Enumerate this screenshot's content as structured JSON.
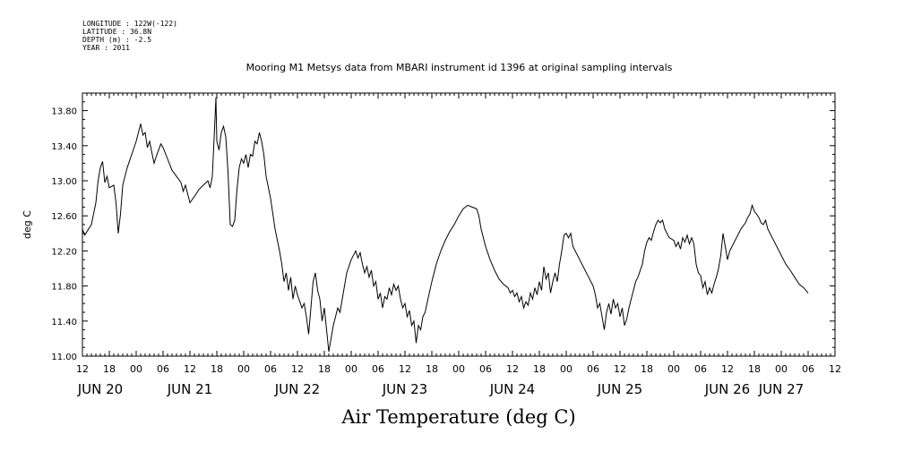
{
  "metadata": {
    "longitude": "LONGITUDE : 122W(-122)",
    "latitude": "LATITUDE : 36.8N",
    "depth": "DEPTH (m) : -2.5",
    "year": "YEAR : 2011"
  },
  "chart_data": {
    "type": "line",
    "title": "Mooring M1 Metsys data from MBARI instrument id 1396 at original sampling intervals",
    "xlabel": "Air Temperature (deg C)",
    "ylabel": "deg C",
    "ylim": [
      11.0,
      14.0
    ],
    "yticks": [
      "11.00",
      "11.40",
      "11.80",
      "12.20",
      "12.60",
      "13.00",
      "13.40",
      "13.80"
    ],
    "xlim_hours_label": "JUN 20 12:00 to JUN 27 12:00",
    "xticks": [
      "12",
      "18",
      "00",
      "06",
      "12",
      "18",
      "00",
      "06",
      "12",
      "18",
      "00",
      "06",
      "12",
      "18",
      "00",
      "06",
      "12",
      "18",
      "00",
      "06",
      "12",
      "18",
      "00",
      "06",
      "12",
      "18",
      "00",
      "06",
      "12"
    ],
    "day_labels": [
      "JUN 20",
      "JUN 21",
      "JUN 22",
      "JUN 23",
      "JUN 24",
      "JUN 25",
      "JUN 26",
      "JUN 27"
    ],
    "grid": false,
    "series": [
      {
        "values_by_hour": [
          [
            0,
            12.45
          ],
          [
            0.5,
            12.38
          ],
          [
            1,
            12.42
          ],
          [
            2,
            12.5
          ],
          [
            3,
            12.75
          ],
          [
            3.5,
            13.0
          ],
          [
            4,
            13.15
          ],
          [
            4.5,
            13.22
          ],
          [
            5,
            12.98
          ],
          [
            5.5,
            13.05
          ],
          [
            6,
            12.92
          ],
          [
            7,
            12.95
          ],
          [
            7.5,
            12.75
          ],
          [
            8,
            12.4
          ],
          [
            8.5,
            12.62
          ],
          [
            9,
            12.95
          ],
          [
            10,
            13.15
          ],
          [
            11,
            13.3
          ],
          [
            12,
            13.45
          ],
          [
            12.5,
            13.55
          ],
          [
            13,
            13.65
          ],
          [
            13.5,
            13.52
          ],
          [
            14,
            13.55
          ],
          [
            14.5,
            13.38
          ],
          [
            15,
            13.45
          ],
          [
            15.5,
            13.32
          ],
          [
            16,
            13.2
          ],
          [
            16.5,
            13.28
          ],
          [
            17,
            13.35
          ],
          [
            17.5,
            13.42
          ],
          [
            18,
            13.38
          ],
          [
            19,
            13.25
          ],
          [
            20,
            13.12
          ],
          [
            21,
            13.05
          ],
          [
            22,
            12.98
          ],
          [
            22.5,
            12.88
          ],
          [
            23,
            12.95
          ],
          [
            23.5,
            12.85
          ],
          [
            24,
            12.75
          ],
          [
            25,
            12.82
          ],
          [
            26,
            12.9
          ],
          [
            27,
            12.95
          ],
          [
            28,
            13.0
          ],
          [
            28.5,
            12.92
          ],
          [
            29,
            13.05
          ],
          [
            29.5,
            13.6
          ],
          [
            29.8,
            13.95
          ],
          [
            30,
            13.45
          ],
          [
            30.5,
            13.35
          ],
          [
            31,
            13.55
          ],
          [
            31.5,
            13.62
          ],
          [
            32,
            13.5
          ],
          [
            32.5,
            13.1
          ],
          [
            33,
            12.5
          ],
          [
            33.5,
            12.48
          ],
          [
            34,
            12.55
          ],
          [
            34.5,
            12.9
          ],
          [
            35,
            13.15
          ],
          [
            35.5,
            13.25
          ],
          [
            36,
            13.2
          ],
          [
            36.5,
            13.3
          ],
          [
            37,
            13.15
          ],
          [
            37.5,
            13.3
          ],
          [
            38,
            13.28
          ],
          [
            38.5,
            13.45
          ],
          [
            39,
            13.42
          ],
          [
            39.5,
            13.55
          ],
          [
            40,
            13.45
          ],
          [
            40.5,
            13.3
          ],
          [
            41,
            13.05
          ],
          [
            42,
            12.8
          ],
          [
            43,
            12.45
          ],
          [
            44,
            12.2
          ],
          [
            44.5,
            12.05
          ],
          [
            45,
            11.85
          ],
          [
            45.5,
            11.95
          ],
          [
            46,
            11.75
          ],
          [
            46.5,
            11.9
          ],
          [
            47,
            11.65
          ],
          [
            47.5,
            11.8
          ],
          [
            48,
            11.7
          ],
          [
            49,
            11.55
          ],
          [
            49.5,
            11.6
          ],
          [
            50,
            11.45
          ],
          [
            50.5,
            11.25
          ],
          [
            51,
            11.55
          ],
          [
            51.5,
            11.85
          ],
          [
            52,
            11.95
          ],
          [
            52.5,
            11.75
          ],
          [
            53,
            11.65
          ],
          [
            53.5,
            11.4
          ],
          [
            54,
            11.55
          ],
          [
            54.5,
            11.3
          ],
          [
            55,
            11.05
          ],
          [
            55.5,
            11.2
          ],
          [
            56,
            11.35
          ],
          [
            56.5,
            11.45
          ],
          [
            57,
            11.55
          ],
          [
            57.5,
            11.5
          ],
          [
            58,
            11.65
          ],
          [
            59,
            11.95
          ],
          [
            60,
            12.1
          ],
          [
            60.5,
            12.15
          ],
          [
            61,
            12.2
          ],
          [
            61.5,
            12.12
          ],
          [
            62,
            12.18
          ],
          [
            62.5,
            12.05
          ],
          [
            63,
            11.95
          ],
          [
            63.5,
            12.02
          ],
          [
            64,
            11.9
          ],
          [
            64.5,
            11.98
          ],
          [
            65,
            11.8
          ],
          [
            65.5,
            11.85
          ],
          [
            66,
            11.65
          ],
          [
            66.5,
            11.72
          ],
          [
            67,
            11.55
          ],
          [
            67.5,
            11.68
          ],
          [
            68,
            11.65
          ],
          [
            68.5,
            11.78
          ],
          [
            69,
            11.7
          ],
          [
            69.5,
            11.82
          ],
          [
            70,
            11.75
          ],
          [
            70.5,
            11.8
          ],
          [
            71,
            11.65
          ],
          [
            71.5,
            11.55
          ],
          [
            72,
            11.6
          ],
          [
            72.5,
            11.45
          ],
          [
            73,
            11.52
          ],
          [
            73.5,
            11.35
          ],
          [
            74,
            11.4
          ],
          [
            74.5,
            11.15
          ],
          [
            75,
            11.35
          ],
          [
            75.5,
            11.3
          ],
          [
            76,
            11.45
          ],
          [
            76.5,
            11.5
          ],
          [
            77,
            11.62
          ],
          [
            78,
            11.85
          ],
          [
            79,
            12.05
          ],
          [
            80,
            12.2
          ],
          [
            81,
            12.32
          ],
          [
            82,
            12.42
          ],
          [
            83,
            12.5
          ],
          [
            84,
            12.6
          ],
          [
            85,
            12.68
          ],
          [
            86,
            12.72
          ],
          [
            87,
            12.7
          ],
          [
            88,
            12.68
          ],
          [
            88.5,
            12.6
          ],
          [
            89,
            12.45
          ],
          [
            90,
            12.25
          ],
          [
            91,
            12.1
          ],
          [
            92,
            11.98
          ],
          [
            93,
            11.88
          ],
          [
            94,
            11.82
          ],
          [
            95,
            11.78
          ],
          [
            95.5,
            11.72
          ],
          [
            96,
            11.75
          ],
          [
            96.5,
            11.68
          ],
          [
            97,
            11.72
          ],
          [
            97.5,
            11.62
          ],
          [
            98,
            11.68
          ],
          [
            98.5,
            11.55
          ],
          [
            99,
            11.62
          ],
          [
            99.5,
            11.58
          ],
          [
            100,
            11.72
          ],
          [
            100.5,
            11.65
          ],
          [
            101,
            11.78
          ],
          [
            101.5,
            11.7
          ],
          [
            102,
            11.85
          ],
          [
            102.5,
            11.75
          ],
          [
            103,
            12.02
          ],
          [
            103.5,
            11.88
          ],
          [
            104,
            11.95
          ],
          [
            104.5,
            11.72
          ],
          [
            105,
            11.85
          ],
          [
            105.5,
            11.95
          ],
          [
            106,
            11.85
          ],
          [
            106.5,
            12.05
          ],
          [
            107,
            12.2
          ],
          [
            107.5,
            12.38
          ],
          [
            108,
            12.4
          ],
          [
            108.5,
            12.35
          ],
          [
            109,
            12.4
          ],
          [
            109.5,
            12.25
          ],
          [
            110,
            12.2
          ],
          [
            111,
            12.1
          ],
          [
            112,
            12.0
          ],
          [
            113,
            11.9
          ],
          [
            114,
            11.8
          ],
          [
            114.5,
            11.7
          ],
          [
            115,
            11.55
          ],
          [
            115.5,
            11.6
          ],
          [
            116,
            11.45
          ],
          [
            116.5,
            11.3
          ],
          [
            117,
            11.5
          ],
          [
            117.5,
            11.6
          ],
          [
            118,
            11.48
          ],
          [
            118.5,
            11.65
          ],
          [
            119,
            11.55
          ],
          [
            119.5,
            11.6
          ],
          [
            120,
            11.45
          ],
          [
            120.5,
            11.55
          ],
          [
            121,
            11.35
          ],
          [
            121.5,
            11.42
          ],
          [
            122,
            11.55
          ],
          [
            122.5,
            11.65
          ],
          [
            123,
            11.75
          ],
          [
            123.5,
            11.85
          ],
          [
            124,
            11.9
          ],
          [
            125,
            12.05
          ],
          [
            125.5,
            12.2
          ],
          [
            126,
            12.3
          ],
          [
            126.5,
            12.35
          ],
          [
            127,
            12.32
          ],
          [
            127.5,
            12.42
          ],
          [
            128,
            12.5
          ],
          [
            128.5,
            12.55
          ],
          [
            129,
            12.52
          ],
          [
            129.5,
            12.55
          ],
          [
            130,
            12.45
          ],
          [
            130.5,
            12.4
          ],
          [
            131,
            12.35
          ],
          [
            132,
            12.32
          ],
          [
            132.5,
            12.25
          ],
          [
            133,
            12.3
          ],
          [
            133.5,
            12.22
          ],
          [
            134,
            12.35
          ],
          [
            134.5,
            12.3
          ],
          [
            135,
            12.38
          ],
          [
            135.5,
            12.28
          ],
          [
            136,
            12.35
          ],
          [
            136.5,
            12.28
          ],
          [
            137,
            12.05
          ],
          [
            137.5,
            11.95
          ],
          [
            138,
            11.92
          ],
          [
            138.5,
            11.78
          ],
          [
            139,
            11.85
          ],
          [
            139.5,
            11.7
          ],
          [
            140,
            11.78
          ],
          [
            140.5,
            11.72
          ],
          [
            141,
            11.82
          ],
          [
            141.5,
            11.9
          ],
          [
            142,
            12.0
          ],
          [
            142.5,
            12.15
          ],
          [
            143,
            12.4
          ],
          [
            143.5,
            12.25
          ],
          [
            144,
            12.1
          ],
          [
            144.5,
            12.2
          ],
          [
            145,
            12.25
          ],
          [
            146,
            12.35
          ],
          [
            147,
            12.45
          ],
          [
            148,
            12.52
          ],
          [
            148.5,
            12.58
          ],
          [
            149,
            12.62
          ],
          [
            149.5,
            12.72
          ],
          [
            150,
            12.65
          ],
          [
            150.5,
            12.62
          ],
          [
            151,
            12.58
          ],
          [
            151.5,
            12.52
          ],
          [
            152,
            12.5
          ],
          [
            152.5,
            12.55
          ],
          [
            153,
            12.45
          ],
          [
            154,
            12.35
          ],
          [
            155,
            12.25
          ],
          [
            156,
            12.15
          ],
          [
            157,
            12.05
          ],
          [
            158,
            11.98
          ],
          [
            159,
            11.9
          ],
          [
            160,
            11.82
          ],
          [
            161,
            11.78
          ],
          [
            162,
            11.72
          ]
        ]
      }
    ]
  }
}
